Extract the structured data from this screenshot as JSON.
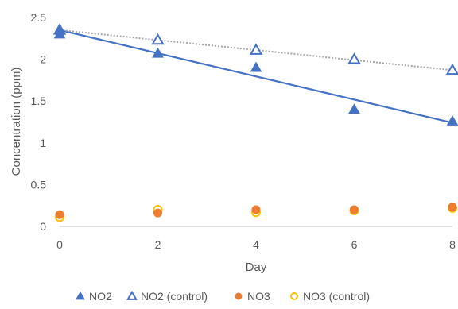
{
  "chart_data": {
    "type": "scatter",
    "xlabel": "Day",
    "ylabel": "Concentration (ppm)",
    "xlim": [
      0,
      8
    ],
    "ylim": [
      0,
      2.5
    ],
    "x_ticks": [
      "0",
      "2",
      "4",
      "6",
      "8"
    ],
    "y_ticks": [
      "0",
      "0.5",
      "1",
      "1.5",
      "2",
      "2.5"
    ],
    "grid": false,
    "legend_position": "bottom",
    "series": [
      {
        "name": "NO2",
        "marker": "triangle-filled",
        "color": "#4472C4",
        "points": [
          [
            0,
            2.3
          ],
          [
            0,
            2.35
          ],
          [
            2,
            2.07
          ],
          [
            4,
            1.9
          ],
          [
            6,
            1.4
          ],
          [
            8,
            1.26
          ]
        ],
        "trendline": {
          "style": "solid",
          "from": [
            0,
            2.35
          ],
          "to": [
            8,
            1.24
          ]
        }
      },
      {
        "name": "NO2 (control)",
        "marker": "triangle-open",
        "color": "#4472C4",
        "points": [
          [
            0,
            2.35
          ],
          [
            2,
            2.23
          ],
          [
            4,
            2.11
          ],
          [
            6,
            2.0
          ],
          [
            8,
            1.87
          ]
        ],
        "trendline": {
          "style": "dotted",
          "color": "#A6A6A6",
          "from": [
            0,
            2.35
          ],
          "to": [
            8,
            1.87
          ]
        }
      },
      {
        "name": "NO3",
        "marker": "circle-filled",
        "color": "#ED7D31",
        "points": [
          [
            0,
            0.14
          ],
          [
            2,
            0.16
          ],
          [
            4,
            0.2
          ],
          [
            6,
            0.2
          ],
          [
            8,
            0.23
          ]
        ]
      },
      {
        "name": "NO3 (control)",
        "marker": "circle-open",
        "color": "#FFC000",
        "points": [
          [
            0,
            0.11
          ],
          [
            2,
            0.2
          ],
          [
            4,
            0.17
          ],
          [
            6,
            0.19
          ],
          [
            8,
            0.22
          ]
        ]
      }
    ]
  }
}
